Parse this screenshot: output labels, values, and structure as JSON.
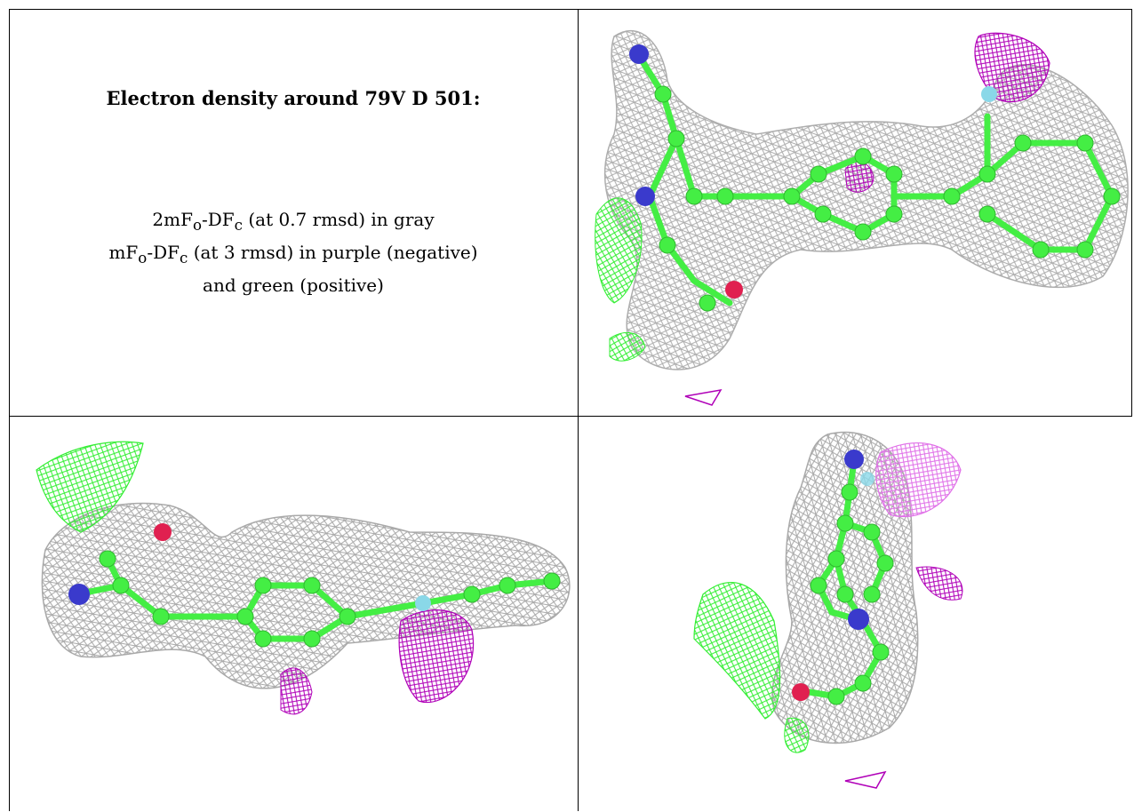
{
  "caption": {
    "title": "Electron density around 79V D 501:",
    "line1_prefix": "2mF",
    "line1_sub1": "o",
    "line1_mid": "-DF",
    "line1_sub2": "c",
    "line1_suffix": " (at 0.7 rmsd) in gray",
    "line2_prefix": "mF",
    "line2_sub1": "o",
    "line2_mid": "-DF",
    "line2_sub2": "c",
    "line2_suffix": " (at 3 rmsd) in purple (negative)",
    "line3": "and green (positive)"
  },
  "colors": {
    "mesh_gray": "#a9a9a9",
    "mesh_purple": "#b000b8",
    "mesh_light_purple": "#e070e8",
    "mesh_green": "#33ee33",
    "atom_carbon": "#44ee44",
    "atom_nitrogen": "#3a3acc",
    "atom_oxygen": "#e02050",
    "atom_fluorine": "#8ad8e8"
  },
  "panels": [
    {
      "view": "top-right",
      "atoms": [
        "carbon",
        "nitrogen",
        "oxygen",
        "fluorine"
      ]
    },
    {
      "view": "bottom-left",
      "atoms": [
        "carbon",
        "nitrogen",
        "oxygen",
        "fluorine"
      ]
    },
    {
      "view": "bottom-right",
      "atoms": [
        "carbon",
        "nitrogen",
        "oxygen",
        "fluorine"
      ]
    }
  ]
}
